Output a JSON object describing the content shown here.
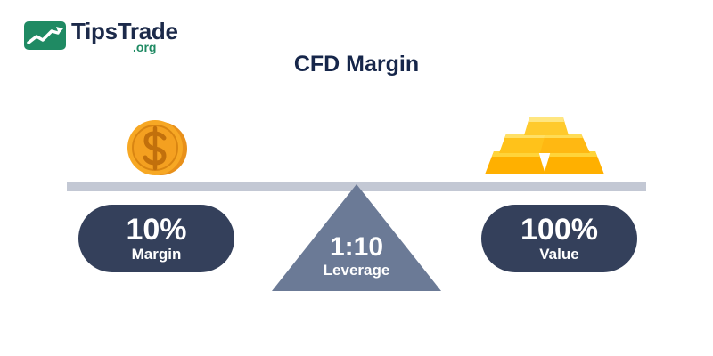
{
  "logo": {
    "name": "TipsTrade",
    "suffix": ".org",
    "icon": "trend-chart-icon"
  },
  "title": "CFD Margin",
  "left": {
    "value": "10%",
    "label": "Margin",
    "icon": "dollar-coin-icon"
  },
  "center": {
    "value": "1:10",
    "label": "Leverage"
  },
  "right": {
    "value": "100%",
    "label": "Value",
    "icon": "gold-bars-icon"
  },
  "colors": {
    "brand_green": "#1f8a63",
    "title_navy": "#16264a",
    "pill_navy": "#34405b",
    "fulcrum_slate": "#6b7a96",
    "beam_gray": "#c3c8d4",
    "coin_orange": "#f7a824",
    "gold_yellow": "#ffc21a"
  }
}
